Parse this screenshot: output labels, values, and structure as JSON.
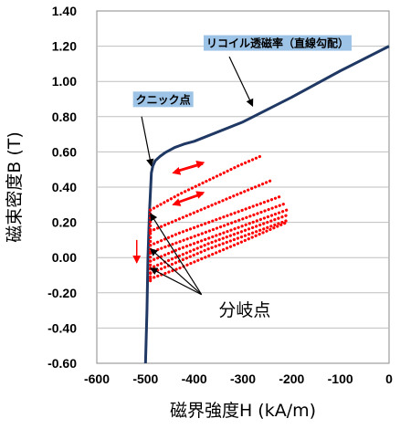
{
  "chart_data": {
    "type": "line",
    "xlabel": "磁界強度H (kA/m)",
    "ylabel": "磁束密度B (T)",
    "xlim": [
      -600,
      0
    ],
    "ylim": [
      -0.6,
      1.4
    ],
    "xticks": [
      "-600",
      "-500",
      "-400",
      "-300",
      "-200",
      "-100",
      "0"
    ],
    "yticks": [
      "1.40",
      "1.20",
      "1.00",
      "0.80",
      "0.60",
      "0.40",
      "0.20",
      "0.00",
      "-0.20",
      "-0.40",
      "-0.60"
    ],
    "grid": "horizontal",
    "series": [
      {
        "color": "#1f3864",
        "style": "solid",
        "x": [
          -500,
          -497,
          -495,
          -492,
          -488,
          -485,
          -480,
          -470,
          -460,
          -450,
          -440,
          -430,
          -420,
          -400,
          -300,
          -200,
          -100,
          0
        ],
        "y": [
          -0.6,
          -0.3,
          0.0,
          0.25,
          0.48,
          0.52,
          0.55,
          0.575,
          0.595,
          0.61,
          0.625,
          0.635,
          0.645,
          0.66,
          0.77,
          0.91,
          1.06,
          1.2
        ]
      },
      {
        "color": "#ff0000",
        "style": "dotted",
        "x": [
          -490,
          -430,
          -370,
          -310,
          -260
        ],
        "y": [
          0.27,
          0.36,
          0.44,
          0.52,
          0.58
        ]
      },
      {
        "color": "#ff0000",
        "style": "dotted",
        "x": [
          -490,
          -430,
          -370,
          -310,
          -240
        ],
        "y": [
          0.15,
          0.22,
          0.29,
          0.36,
          0.44
        ]
      },
      {
        "color": "#ff0000",
        "style": "dotted",
        "x": [
          -490,
          -430,
          -370,
          -310,
          -220
        ],
        "y": [
          0.07,
          0.14,
          0.2,
          0.26,
          0.35
        ]
      },
      {
        "color": "#ff0000",
        "style": "dotted",
        "x": [
          -490,
          -430,
          -370,
          -310,
          -210
        ],
        "y": [
          0.03,
          0.09,
          0.15,
          0.21,
          0.31
        ]
      },
      {
        "color": "#ff0000",
        "style": "dotted",
        "x": [
          -490,
          -430,
          -370,
          -310,
          -210
        ],
        "y": [
          -0.02,
          0.05,
          0.11,
          0.17,
          0.27
        ]
      },
      {
        "color": "#ff0000",
        "style": "dotted",
        "x": [
          -490,
          -430,
          -370,
          -310,
          -210
        ],
        "y": [
          -0.06,
          0.01,
          0.08,
          0.14,
          0.24
        ]
      },
      {
        "color": "#ff0000",
        "style": "dotted",
        "x": [
          -490,
          -430,
          -370,
          -310,
          -210
        ],
        "y": [
          -0.09,
          -0.02,
          0.05,
          0.11,
          0.21
        ]
      },
      {
        "color": "#ff0000",
        "style": "dotted",
        "x": [
          -490,
          -430,
          -370,
          -310,
          -210
        ],
        "y": [
          -0.12,
          -0.06,
          0.01,
          0.08,
          0.2
        ]
      },
      {
        "color": "#ff0000",
        "style": "dotted",
        "x": [
          -490,
          -490,
          -490
        ],
        "y": [
          0.27,
          0.1,
          -0.14
        ]
      }
    ],
    "arrows": [
      {
        "x1": -440,
        "y1": 0.49,
        "x2": -380,
        "y2": 0.54,
        "color": "#ff0000"
      },
      {
        "x1": -382,
        "y1": 0.53,
        "x2": -444,
        "y2": 0.48,
        "color": "#ff0000"
      },
      {
        "x1": -440,
        "y1": 0.31,
        "x2": -380,
        "y2": 0.37,
        "color": "#ff0000"
      },
      {
        "x1": -382,
        "y1": 0.36,
        "x2": -444,
        "y2": 0.3,
        "color": "#ff0000"
      },
      {
        "x1": -518,
        "y1": 0.1,
        "x2": -518,
        "y2": -0.03,
        "color": "#ff0000"
      }
    ],
    "annotations": [
      {
        "text": "リコイル透磁率（直線勾配）",
        "label_x": -375,
        "label_y": 1.195,
        "boxed": true,
        "pointers": [
          {
            "from_x": -328,
            "from_y": 1.14,
            "to_x": -280,
            "to_y": 0.86
          }
        ]
      },
      {
        "text": "クニック点",
        "label_x": -520,
        "label_y": 0.875,
        "boxed": true,
        "pointers": [
          {
            "from_x": -508,
            "from_y": 0.8,
            "to_x": -488,
            "to_y": 0.52
          }
        ]
      },
      {
        "text": "分岐点",
        "label_x": -350,
        "label_y": -0.33,
        "boxed": false,
        "pointers": [
          {
            "from_x": -385,
            "from_y": -0.21,
            "to_x": -490,
            "to_y": 0.25
          },
          {
            "from_x": -385,
            "from_y": -0.21,
            "to_x": -490,
            "to_y": 0.05
          },
          {
            "from_x": -385,
            "from_y": -0.21,
            "to_x": -490,
            "to_y": -0.06
          }
        ]
      }
    ],
    "colors": {
      "curve": "#1f3864",
      "recoil": "#ff0000",
      "callout_fill": "#9dc3e6"
    }
  }
}
